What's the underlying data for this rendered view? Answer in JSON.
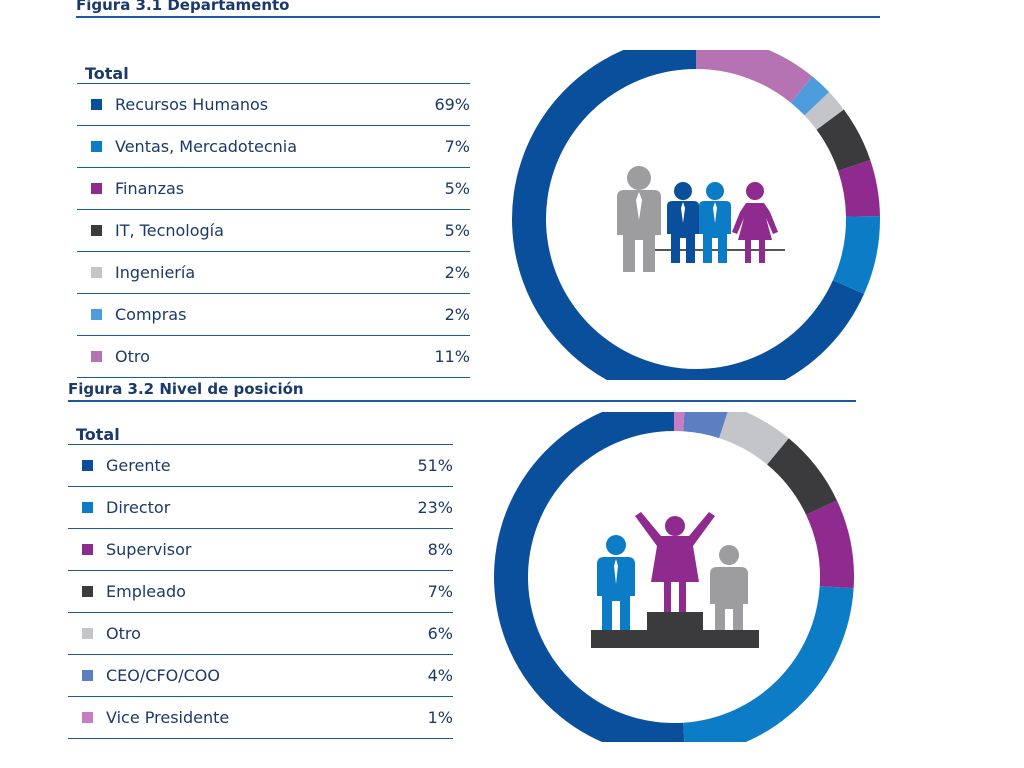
{
  "figures": [
    {
      "title": "Figura 3.1 Departamento",
      "header": "Total",
      "icon": "group-of-people-icon"
    },
    {
      "title": "Figura 3.2 Nivel de posición",
      "header": "Total",
      "icon": "podium-people-icon"
    }
  ],
  "chart_data": [
    {
      "type": "pie",
      "title": "Figura 3.1 Departamento",
      "variant": "donut",
      "legend": "left",
      "slices": [
        {
          "label": "Recursos Humanos",
          "value": 69,
          "display": "69%",
          "color": "#0a4f9c"
        },
        {
          "label": "Ventas, Mercadotecnia",
          "value": 7,
          "display": "7%",
          "color": "#0d7cc6"
        },
        {
          "label": "Finanzas",
          "value": 5,
          "display": "5%",
          "color": "#8f2a8f"
        },
        {
          "label": "IT, Tecnología",
          "value": 5,
          "display": "5%",
          "color": "#3b3b3d"
        },
        {
          "label": "Ingeniería",
          "value": 2,
          "display": "2%",
          "color": "#c4c5c8"
        },
        {
          "label": "Compras",
          "value": 2,
          "display": "2%",
          "color": "#4d9ddc"
        },
        {
          "label": "Otro",
          "value": 11,
          "display": "11%",
          "color": "#b673b4"
        }
      ]
    },
    {
      "type": "pie",
      "title": "Figura 3.2 Nivel de posición",
      "variant": "donut",
      "legend": "left",
      "slices": [
        {
          "label": "Gerente",
          "value": 51,
          "display": "51%",
          "color": "#0a4f9c"
        },
        {
          "label": "Director",
          "value": 23,
          "display": "23%",
          "color": "#0d7cc6"
        },
        {
          "label": "Supervisor",
          "value": 8,
          "display": "8%",
          "color": "#8f2a8f"
        },
        {
          "label": "Empleado",
          "value": 7,
          "display": "7%",
          "color": "#3b3b3d"
        },
        {
          "label": "Otro",
          "value": 6,
          "display": "6%",
          "color": "#c4c5c8"
        },
        {
          "label": "CEO/CFO/COO",
          "value": 4,
          "display": "4%",
          "color": "#5b7fc0"
        },
        {
          "label": "Vice Presidente",
          "value": 1,
          "display": "1%",
          "color": "#c77cc4"
        }
      ]
    }
  ]
}
